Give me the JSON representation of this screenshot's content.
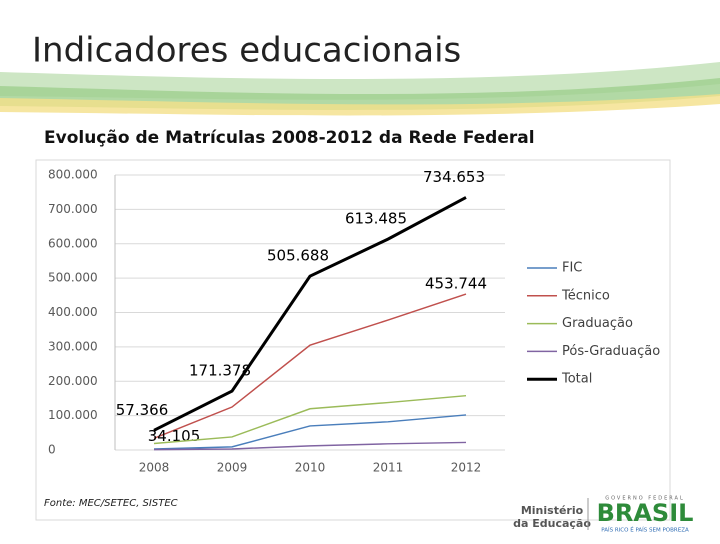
{
  "slide": {
    "title": "Indicadores educacionais",
    "logos": {
      "ministry": [
        "Ministério",
        "da Educação"
      ],
      "government": "GOVERNO FEDERAL",
      "brand": "BRASIL",
      "motto": "PAÍS RICO É PAÍS SEM POBREZA"
    }
  },
  "chart_data": {
    "type": "line",
    "title": "Evolução de Matrículas 2008-2012 da Rede Federal",
    "source": "Fonte: MEC/SETEC, SISTEC",
    "categories": [
      "2008",
      "2009",
      "2010",
      "2011",
      "2012"
    ],
    "series": [
      {
        "name": "FIC",
        "color": "#4a7ebb",
        "values": [
          3000,
          9000,
          70000,
          82000,
          102000
        ]
      },
      {
        "name": "Técnico",
        "color": "#c0504d",
        "values": [
          34105,
          125000,
          305000,
          378000,
          453744
        ],
        "value_labels": [
          "34.105",
          null,
          null,
          null,
          "453.744"
        ]
      },
      {
        "name": "Graduação",
        "color": "#9bbb59",
        "values": [
          19000,
          38000,
          120000,
          138000,
          158000
        ]
      },
      {
        "name": "Pós-Graduação",
        "color": "#8064a2",
        "values": [
          1261,
          3000,
          12000,
          18000,
          22000
        ]
      },
      {
        "name": "Total",
        "color": "#000000",
        "values": [
          57366,
          171378,
          505688,
          613485,
          734653
        ],
        "value_labels": [
          "57.366",
          "171.378",
          "505.688",
          "613.485",
          "734.653"
        ]
      }
    ],
    "ylim": [
      0,
      800000
    ],
    "yticks": [
      0,
      {
        "value": 100000,
        "label": "100.000"
      },
      {
        "value": 200000,
        "label": "200.000"
      },
      {
        "value": 300000,
        "label": "300.000"
      },
      {
        "value": 400000,
        "label": "400.000"
      },
      {
        "value": 500000,
        "label": "500.000"
      },
      {
        "value": 600000,
        "label": "600.000"
      },
      {
        "value": 700000,
        "label": "700.000"
      },
      {
        "value": 800000,
        "label": "800.000"
      }
    ],
    "grid": true,
    "legend": "right"
  }
}
